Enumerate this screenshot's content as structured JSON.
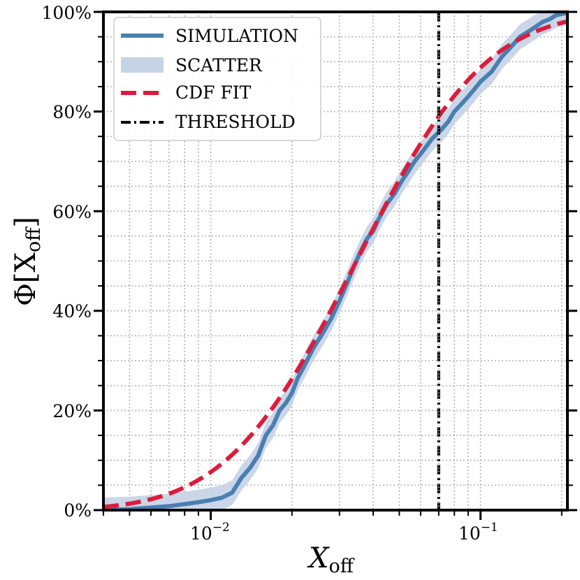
{
  "chart_data": {
    "type": "line",
    "x_scale": "log",
    "xlim": [
      0.004,
      0.21
    ],
    "ylim": [
      0,
      1
    ],
    "xlabel": "X",
    "xlabel_subscript": "off",
    "ylabel_prefix": "Φ[X",
    "ylabel_subscript": "off",
    "ylabel_suffix": "]",
    "x_major_ticks": [
      {
        "value": 0.01,
        "base": "10",
        "exp": "−2"
      },
      {
        "value": 0.1,
        "base": "10",
        "exp": "−1"
      }
    ],
    "y_ticks": [
      {
        "value": 0,
        "label": "0%"
      },
      {
        "value": 0.2,
        "label": "20%"
      },
      {
        "value": 0.4,
        "label": "40%"
      },
      {
        "value": 0.6,
        "label": "60%"
      },
      {
        "value": 0.8,
        "label": "80%"
      },
      {
        "value": 1.0,
        "label": "100%"
      }
    ],
    "grid": true,
    "legend_position": "upper-left",
    "series": [
      {
        "name": "SIMULATION",
        "style": "solid",
        "color": "#4a7fb0",
        "x": [
          0.004,
          0.005,
          0.006,
          0.007,
          0.008,
          0.009,
          0.01,
          0.011,
          0.012,
          0.013,
          0.014,
          0.015,
          0.016,
          0.017,
          0.018,
          0.019,
          0.02,
          0.021,
          0.022,
          0.024,
          0.026,
          0.028,
          0.03,
          0.032,
          0.034,
          0.036,
          0.038,
          0.04,
          0.042,
          0.045,
          0.048,
          0.051,
          0.054,
          0.057,
          0.06,
          0.063,
          0.066,
          0.069,
          0.072,
          0.076,
          0.08,
          0.085,
          0.09,
          0.095,
          0.1,
          0.11,
          0.12,
          0.13,
          0.14,
          0.15,
          0.16,
          0.17,
          0.18,
          0.19,
          0.2,
          0.21
        ],
        "y": [
          0.0,
          0.002,
          0.005,
          0.008,
          0.012,
          0.016,
          0.02,
          0.025,
          0.035,
          0.065,
          0.085,
          0.11,
          0.15,
          0.17,
          0.2,
          0.215,
          0.235,
          0.265,
          0.285,
          0.325,
          0.355,
          0.385,
          0.42,
          0.455,
          0.49,
          0.52,
          0.545,
          0.56,
          0.585,
          0.615,
          0.635,
          0.66,
          0.68,
          0.7,
          0.715,
          0.73,
          0.745,
          0.755,
          0.765,
          0.78,
          0.8,
          0.815,
          0.83,
          0.845,
          0.86,
          0.88,
          0.91,
          0.93,
          0.95,
          0.96,
          0.97,
          0.98,
          0.985,
          0.993,
          0.996,
          0.998
        ]
      },
      {
        "name": "SCATTER",
        "style": "band",
        "color": "#c5d3e6",
        "half_width": 0.025
      },
      {
        "name": "CDF FIT",
        "style": "dashed",
        "color": "#dc1c3c",
        "lognormal_median": 0.0347,
        "lognormal_sigma": 0.87
      },
      {
        "name": "THRESHOLD",
        "style": "dashdot",
        "color": "#000000",
        "x_value": 0.07
      }
    ]
  }
}
